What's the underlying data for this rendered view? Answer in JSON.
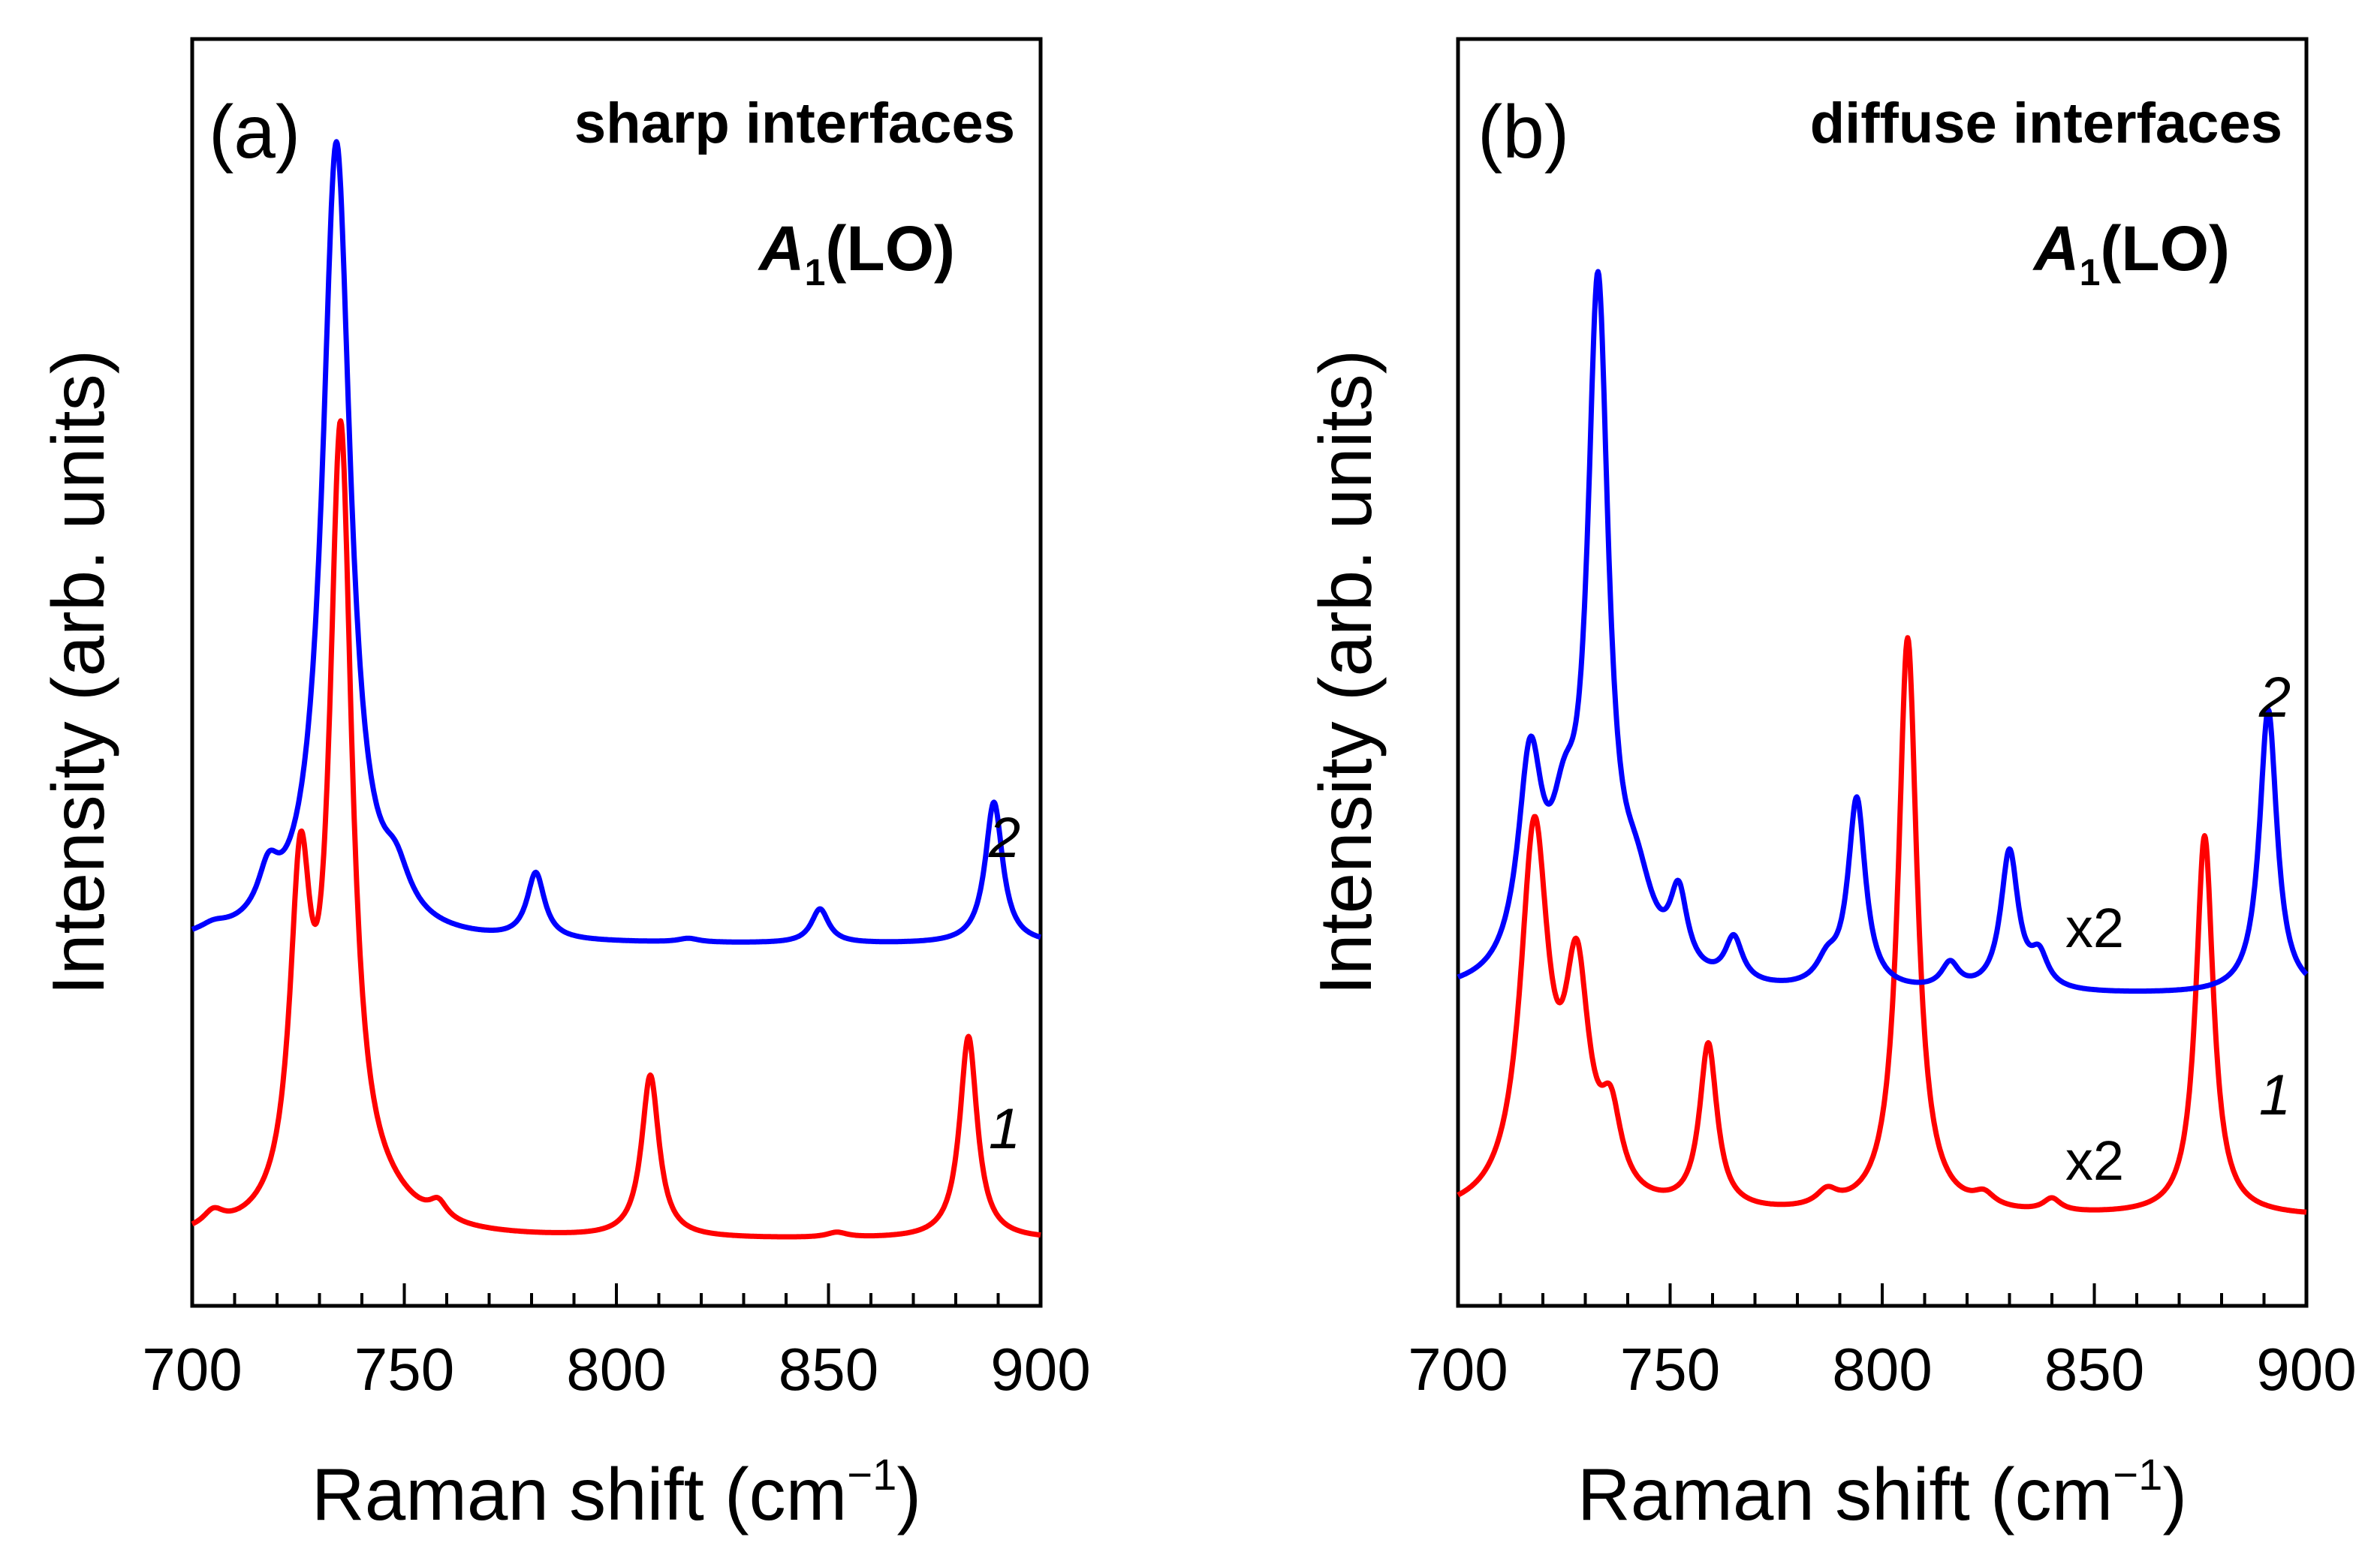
{
  "chart_data": [
    {
      "type": "line",
      "panel_label": "(a)",
      "title": "sharp interfaces",
      "mode_label": {
        "symbol": "A",
        "subscript": "1",
        "rest": "(LO)"
      },
      "xlabel": "Raman shift (cm−1)",
      "xlabel_parts": {
        "main": "Raman shift (cm",
        "sup": "−1",
        "close": ")"
      },
      "ylabel": "Intensity (arb. units)",
      "xlim": [
        700,
        900
      ],
      "ylim": [
        0,
        1
      ],
      "x_ticks": [
        700,
        750,
        800,
        850,
        900
      ],
      "x_tick_labels": [
        "700",
        "750",
        "800",
        "850",
        "900"
      ],
      "y_ticks_visible": false,
      "series": [
        {
          "name": "1",
          "color": "#ff0000",
          "baseline": 0.052,
          "peaks": [
            {
              "x": 705,
              "height": 0.012,
              "width": 3
            },
            {
              "x": 725.5,
              "height": 0.255,
              "width": 3
            },
            {
              "x": 735.0,
              "height": 0.615,
              "width": 3.2
            },
            {
              "x": 745,
              "height": 0.016,
              "width": 10
            },
            {
              "x": 758,
              "height": 0.013,
              "width": 2.5
            },
            {
              "x": 808,
              "height": 0.128,
              "width": 2.5
            },
            {
              "x": 852,
              "height": 0.004,
              "width": 3
            },
            {
              "x": 883,
              "height": 0.16,
              "width": 2.5
            }
          ]
        },
        {
          "name": "2",
          "color": "#0000ff",
          "baseline": 0.285,
          "peaks": [
            {
              "x": 705,
              "height": 0.006,
              "width": 4
            },
            {
              "x": 718,
              "height": 0.035,
              "width": 3
            },
            {
              "x": 734.0,
              "height": 0.63,
              "width": 4.0
            },
            {
              "x": 748,
              "height": 0.033,
              "width": 4
            },
            {
              "x": 781,
              "height": 0.052,
              "width": 2.5
            },
            {
              "x": 817,
              "height": 0.003,
              "width": 3
            },
            {
              "x": 848,
              "height": 0.027,
              "width": 2.5
            },
            {
              "x": 889,
              "height": 0.112,
              "width": 2.5
            }
          ]
        }
      ],
      "annotations": [
        {
          "text": "1",
          "x": 883,
          "y": 0.175
        },
        {
          "text": "2",
          "x": 889,
          "y": 0.41
        }
      ]
    },
    {
      "type": "line",
      "panel_label": "(b)",
      "title": "diffuse interfaces",
      "mode_label": {
        "symbol": "A",
        "subscript": "1",
        "rest": "(LO)"
      },
      "xlabel": "Raman shift (cm−1)",
      "xlabel_parts": {
        "main": "Raman shift (cm",
        "sup": "−1",
        "close": ")"
      },
      "ylabel": "Intensity (arb. units)",
      "xlim": [
        700,
        900
      ],
      "ylim": [
        0,
        1
      ],
      "x_ticks": [
        700,
        750,
        800,
        850,
        900
      ],
      "x_tick_labels": [
        "700",
        "750",
        "800",
        "850",
        "900"
      ],
      "y_ticks_visible": false,
      "series": [
        {
          "name": "1",
          "color": "#ff0000",
          "scale_label": "x2",
          "baseline": 0.07,
          "peaks": [
            {
              "x": 718,
              "height": 0.295,
              "width": 4
            },
            {
              "x": 728,
              "height": 0.17,
              "width": 3.5
            },
            {
              "x": 736,
              "height": 0.06,
              "width": 3
            },
            {
              "x": 759,
              "height": 0.13,
              "width": 2.5
            },
            {
              "x": 787,
              "height": 0.012,
              "width": 3
            },
            {
              "x": 806,
              "height": 0.455,
              "width": 2.7
            },
            {
              "x": 824,
              "height": 0.01,
              "width": 3
            },
            {
              "x": 840,
              "height": 0.01,
              "width": 2.5
            },
            {
              "x": 876,
              "height": 0.3,
              "width": 2.5
            }
          ]
        },
        {
          "name": "2",
          "color": "#0000ff",
          "scale_label": "x2",
          "baseline": 0.245,
          "peaks": [
            {
              "x": 717,
              "height": 0.165,
              "width": 3.5
            },
            {
              "x": 725,
              "height": 0.09,
              "width": 4
            },
            {
              "x": 733,
              "height": 0.53,
              "width": 3
            },
            {
              "x": 742,
              "height": 0.06,
              "width": 5
            },
            {
              "x": 752,
              "height": 0.06,
              "width": 2.5
            },
            {
              "x": 765,
              "height": 0.035,
              "width": 2.5
            },
            {
              "x": 787,
              "height": 0.018,
              "width": 3
            },
            {
              "x": 794,
              "height": 0.15,
              "width": 2.5
            },
            {
              "x": 816,
              "height": 0.02,
              "width": 2.5
            },
            {
              "x": 830,
              "height": 0.11,
              "width": 2.5
            },
            {
              "x": 837,
              "height": 0.025,
              "width": 2.5
            },
            {
              "x": 891,
              "height": 0.225,
              "width": 2.5
            }
          ]
        }
      ],
      "annotations": [
        {
          "text": "1",
          "x": 893,
          "y": 0.17
        },
        {
          "text": "2",
          "x": 893,
          "y": 0.5
        },
        {
          "text": "x2",
          "x": 858,
          "y": 0.13
        },
        {
          "text": "x2",
          "x": 858,
          "y": 0.305
        }
      ]
    }
  ]
}
